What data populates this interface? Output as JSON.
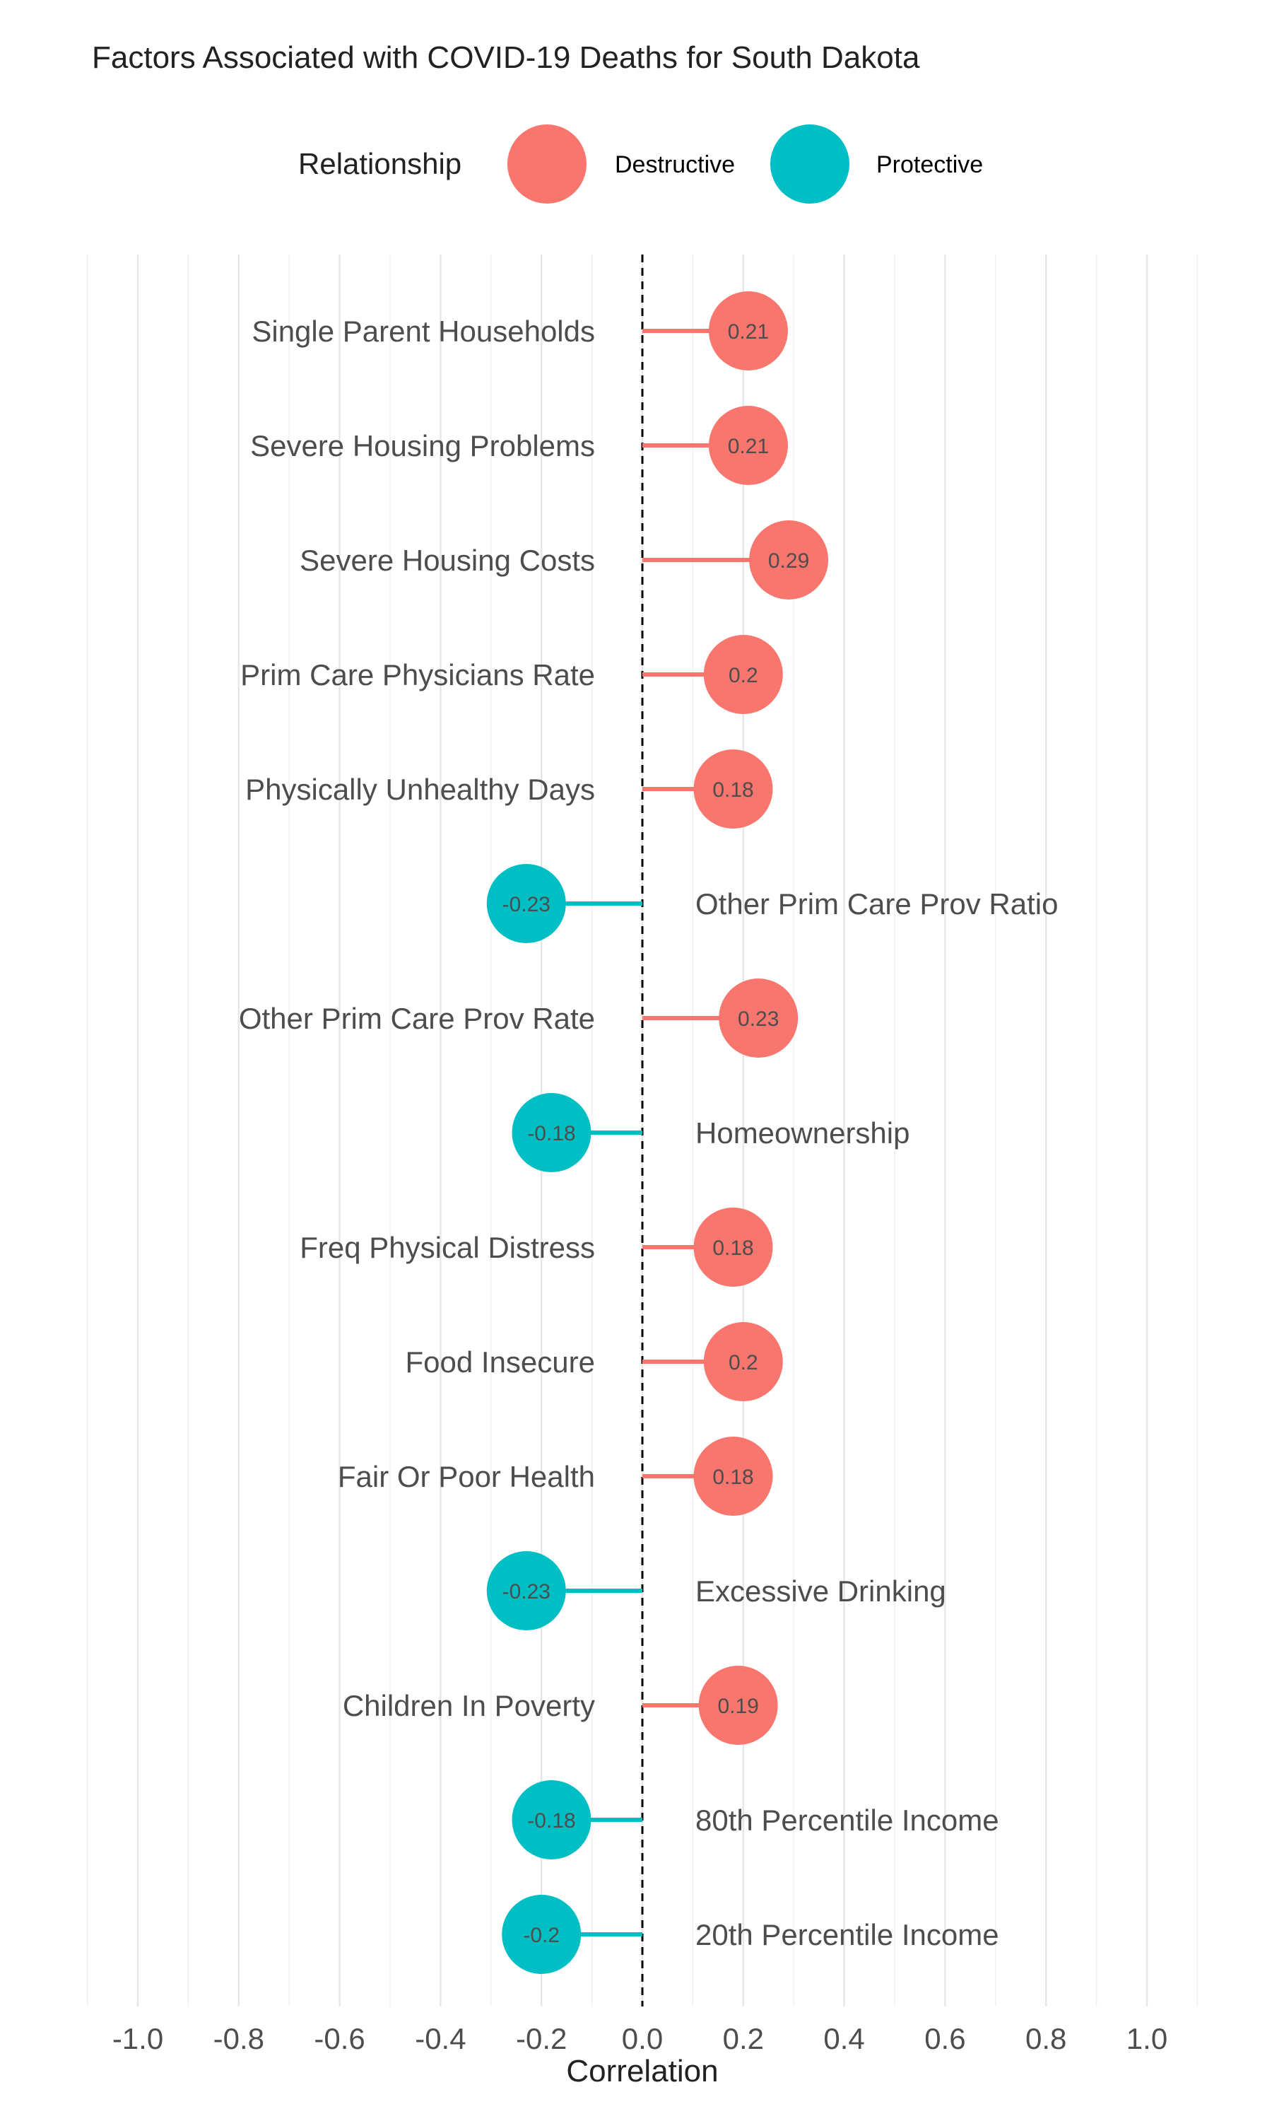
{
  "colors": {
    "Destructive": "#F8766D",
    "Protective": "#00BFC4"
  },
  "chart_data": {
    "type": "lollipop",
    "title": "Factors Associated with COVID-19 Deaths for South Dakota",
    "xlabel": "Correlation",
    "ylabel": "",
    "xlim": [
      -1.1,
      1.1
    ],
    "xticks": [
      -1.0,
      -0.8,
      -0.6,
      -0.4,
      -0.2,
      0.0,
      0.2,
      0.4,
      0.6,
      0.8,
      1.0
    ],
    "xtick_labels": [
      "-1.0",
      "-0.8",
      "-0.6",
      "-0.4",
      "-0.2",
      "0.0",
      "0.2",
      "0.4",
      "0.6",
      "0.8",
      "1.0"
    ],
    "grid": true,
    "reference_line": 0,
    "legend": {
      "title": "Relationship",
      "position": "top",
      "entries": [
        "Destructive",
        "Protective"
      ]
    },
    "points": [
      {
        "category": "Single Parent Households",
        "value": 0.21,
        "label": "0.21",
        "relationship": "Destructive"
      },
      {
        "category": "Severe Housing Problems",
        "value": 0.21,
        "label": "0.21",
        "relationship": "Destructive"
      },
      {
        "category": "Severe Housing Costs",
        "value": 0.29,
        "label": "0.29",
        "relationship": "Destructive"
      },
      {
        "category": "Prim Care Physicians Rate",
        "value": 0.2,
        "label": "0.2",
        "relationship": "Destructive"
      },
      {
        "category": "Physically Unhealthy Days",
        "value": 0.18,
        "label": "0.18",
        "relationship": "Destructive"
      },
      {
        "category": "Other Prim Care Prov Ratio",
        "value": -0.23,
        "label": "-0.23",
        "relationship": "Protective"
      },
      {
        "category": "Other Prim Care Prov Rate",
        "value": 0.23,
        "label": "0.23",
        "relationship": "Destructive"
      },
      {
        "category": "Homeownership",
        "value": -0.18,
        "label": "-0.18",
        "relationship": "Protective"
      },
      {
        "category": "Freq Physical Distress",
        "value": 0.18,
        "label": "0.18",
        "relationship": "Destructive"
      },
      {
        "category": "Food Insecure",
        "value": 0.2,
        "label": "0.2",
        "relationship": "Destructive"
      },
      {
        "category": "Fair Or Poor Health",
        "value": 0.18,
        "label": "0.18",
        "relationship": "Destructive"
      },
      {
        "category": "Excessive Drinking",
        "value": -0.23,
        "label": "-0.23",
        "relationship": "Protective"
      },
      {
        "category": "Children In Poverty",
        "value": 0.19,
        "label": "0.19",
        "relationship": "Destructive"
      },
      {
        "category": "80th Percentile Income",
        "value": -0.18,
        "label": "-0.18",
        "relationship": "Protective"
      },
      {
        "category": "20th Percentile Income",
        "value": -0.2,
        "label": "-0.2",
        "relationship": "Protective"
      }
    ]
  }
}
